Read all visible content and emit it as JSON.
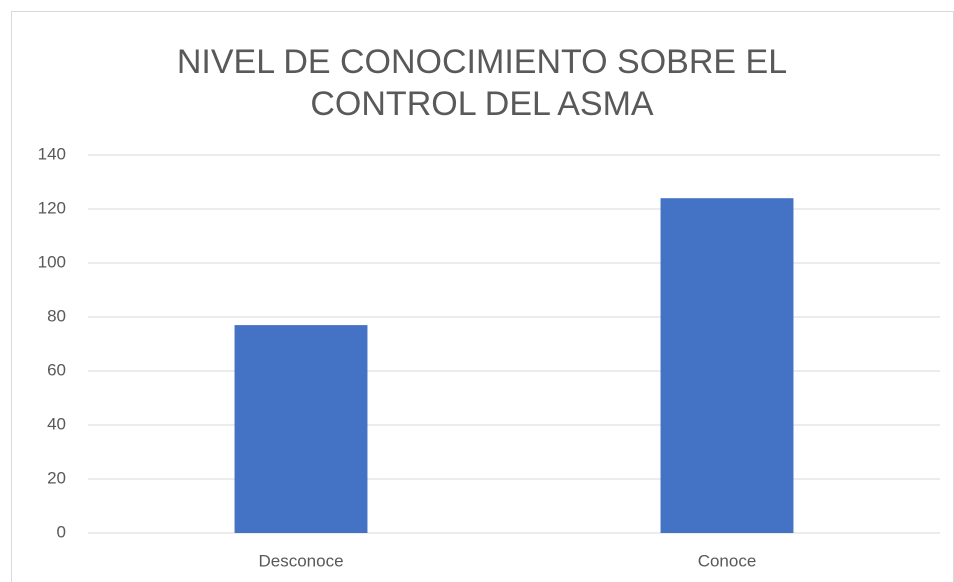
{
  "chart_data": {
    "type": "bar",
    "title": [
      "NIVEL DE CONOCIMIENTO SOBRE EL",
      "CONTROL DEL ASMA"
    ],
    "categories": [
      "Desconoce",
      "Conoce"
    ],
    "values": [
      77,
      124
    ],
    "color": "#4472c4",
    "ylim": [
      0,
      140
    ],
    "yticks": [
      0,
      20,
      40,
      60,
      80,
      100,
      120,
      140
    ],
    "grid": true
  }
}
